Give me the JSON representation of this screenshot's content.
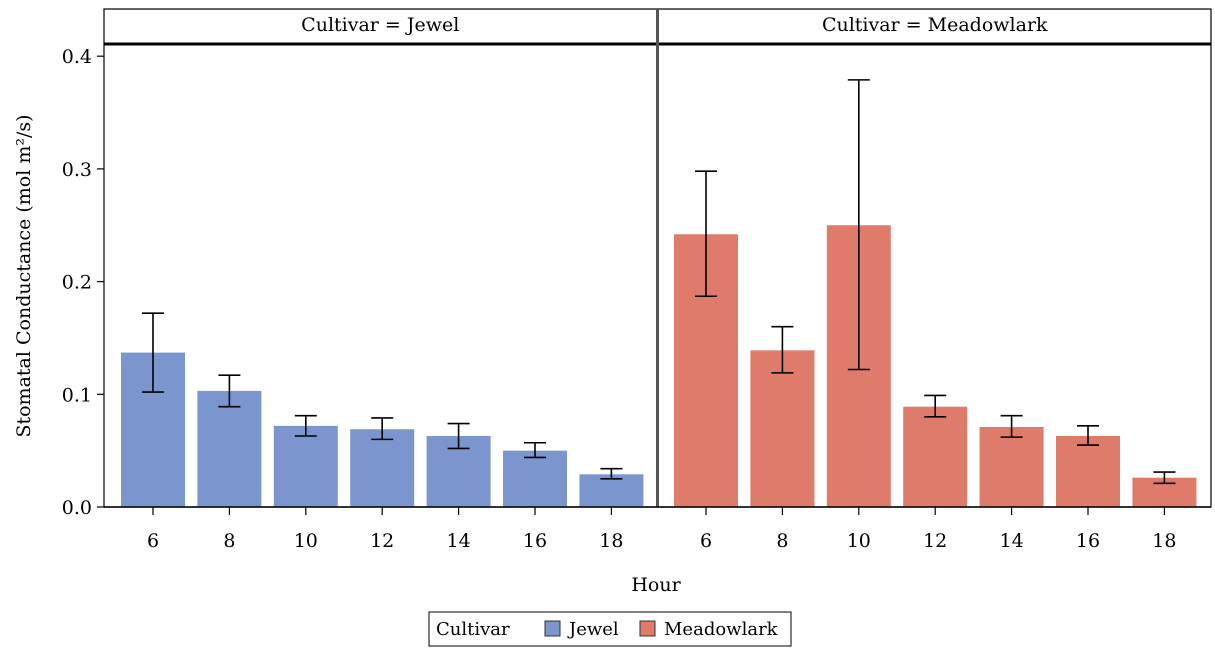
{
  "chart_data": {
    "type": "bar",
    "facet_variable": "Cultivar",
    "xlabel": "Hour",
    "ylabel": "Stomatal Conductance  (mol m²/s)",
    "ylim": [
      0,
      0.41
    ],
    "yticks": [
      0.0,
      0.1,
      0.2,
      0.3,
      0.4
    ],
    "ytick_labels": [
      "0.0",
      "0.1",
      "0.2",
      "0.3",
      "0.4"
    ],
    "categories": [
      "6",
      "8",
      "10",
      "12",
      "14",
      "16",
      "18"
    ],
    "panels": [
      {
        "strip_label": "Cultivar = Jewel",
        "cultivar": "Jewel",
        "color": "#7b96cf",
        "values": [
          0.137,
          0.103,
          0.072,
          0.069,
          0.063,
          0.05,
          0.029
        ],
        "err_low": [
          0.102,
          0.089,
          0.063,
          0.06,
          0.052,
          0.044,
          0.025
        ],
        "err_high": [
          0.172,
          0.117,
          0.081,
          0.079,
          0.074,
          0.057,
          0.034
        ]
      },
      {
        "strip_label": "Cultivar = Meadowlark",
        "cultivar": "Meadowlark",
        "color": "#de7b6b",
        "values": [
          0.242,
          0.139,
          0.25,
          0.089,
          0.071,
          0.063,
          0.026
        ],
        "err_low": [
          0.187,
          0.119,
          0.122,
          0.08,
          0.062,
          0.055,
          0.021
        ],
        "err_high": [
          0.298,
          0.16,
          0.379,
          0.099,
          0.081,
          0.072,
          0.031
        ]
      }
    ],
    "legend": {
      "title": "Cultivar",
      "placement": "bottom-center",
      "items": [
        {
          "label": "Jewel",
          "color": "#7b96cf"
        },
        {
          "label": "Meadowlark",
          "color": "#de7b6b"
        }
      ]
    }
  }
}
